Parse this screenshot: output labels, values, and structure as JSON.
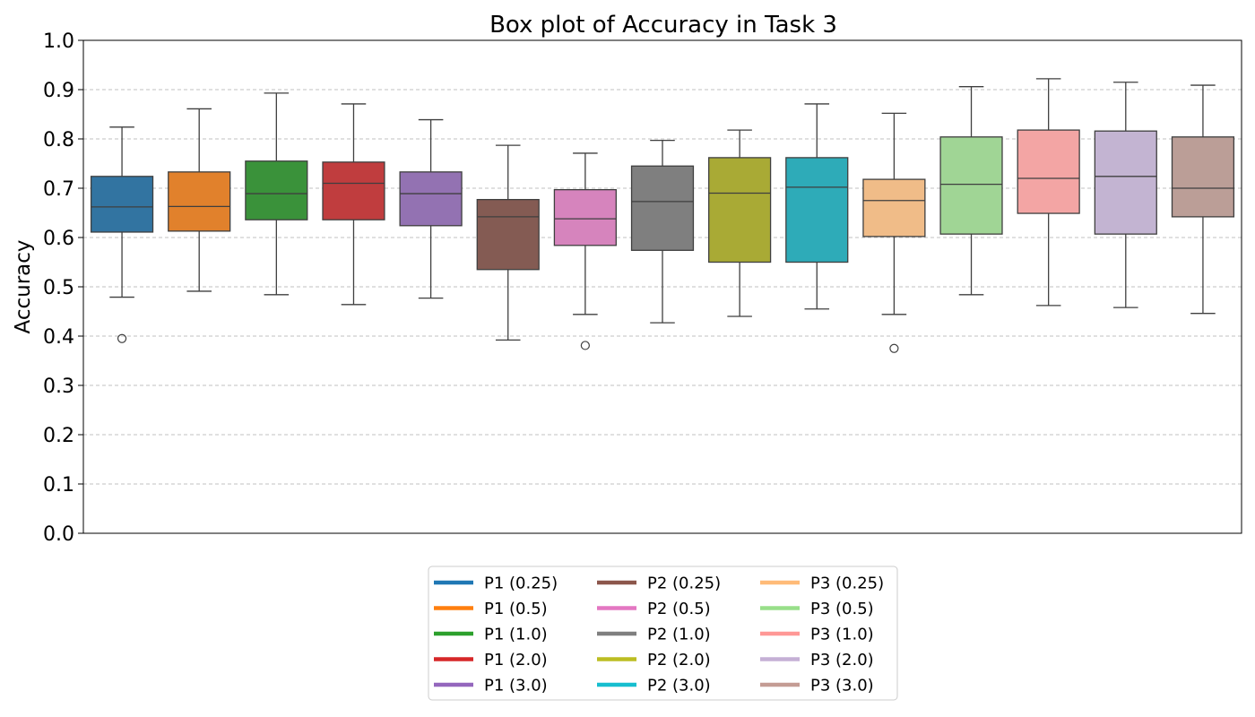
{
  "chart_data": {
    "type": "box",
    "title": "Box plot of Accuracy in Task 3",
    "xlabel": "",
    "ylabel": "Accuracy",
    "ylim": [
      0,
      1
    ],
    "yticks": [
      "0.0",
      "0.1",
      "0.2",
      "0.3",
      "0.4",
      "0.5",
      "0.6",
      "0.7",
      "0.8",
      "0.9",
      "1.0"
    ],
    "grid": "y-dashed",
    "legend_position": "bottom-center",
    "series": [
      {
        "name": "P1 (0.25)",
        "color": "#1f77b4",
        "box_color": "#3274a1",
        "whisker_low": 0.479,
        "q1": 0.611,
        "median": 0.662,
        "q3": 0.724,
        "whisker_high": 0.824,
        "outliers": [
          0.395
        ]
      },
      {
        "name": "P1 (0.5)",
        "color": "#ff7f0e",
        "box_color": "#e1812c",
        "whisker_low": 0.491,
        "q1": 0.613,
        "median": 0.663,
        "q3": 0.733,
        "whisker_high": 0.861,
        "outliers": []
      },
      {
        "name": "P1 (1.0)",
        "color": "#2ca02c",
        "box_color": "#3a923a",
        "whisker_low": 0.484,
        "q1": 0.636,
        "median": 0.689,
        "q3": 0.755,
        "whisker_high": 0.893,
        "outliers": []
      },
      {
        "name": "P1 (2.0)",
        "color": "#d62728",
        "box_color": "#c03d3e",
        "whisker_low": 0.464,
        "q1": 0.636,
        "median": 0.71,
        "q3": 0.753,
        "whisker_high": 0.871,
        "outliers": []
      },
      {
        "name": "P1 (3.0)",
        "color": "#9467bd",
        "box_color": "#9372b2",
        "whisker_low": 0.477,
        "q1": 0.624,
        "median": 0.689,
        "q3": 0.733,
        "whisker_high": 0.839,
        "outliers": []
      },
      {
        "name": "P2 (0.25)",
        "color": "#8c564b",
        "box_color": "#845b53",
        "whisker_low": 0.392,
        "q1": 0.535,
        "median": 0.642,
        "q3": 0.677,
        "whisker_high": 0.787,
        "outliers": []
      },
      {
        "name": "P2 (0.5)",
        "color": "#e377c2",
        "box_color": "#d684bd",
        "whisker_low": 0.444,
        "q1": 0.584,
        "median": 0.638,
        "q3": 0.697,
        "whisker_high": 0.771,
        "outliers": [
          0.381
        ]
      },
      {
        "name": "P2 (1.0)",
        "color": "#7f7f7f",
        "box_color": "#7f7f7f",
        "whisker_low": 0.427,
        "q1": 0.574,
        "median": 0.673,
        "q3": 0.745,
        "whisker_high": 0.797,
        "outliers": []
      },
      {
        "name": "P2 (2.0)",
        "color": "#bcbd22",
        "box_color": "#a9aa35",
        "whisker_low": 0.44,
        "q1": 0.55,
        "median": 0.69,
        "q3": 0.762,
        "whisker_high": 0.818,
        "outliers": []
      },
      {
        "name": "P2 (3.0)",
        "color": "#17becf",
        "box_color": "#2eabb8",
        "whisker_low": 0.455,
        "q1": 0.55,
        "median": 0.702,
        "q3": 0.762,
        "whisker_high": 0.871,
        "outliers": []
      },
      {
        "name": "P3 (0.25)",
        "color": "#ffbb78",
        "box_color": "#f0bc88",
        "whisker_low": 0.444,
        "q1": 0.602,
        "median": 0.675,
        "q3": 0.718,
        "whisker_high": 0.852,
        "outliers": [
          0.375
        ]
      },
      {
        "name": "P3 (0.5)",
        "color": "#98df8a",
        "box_color": "#a0d595",
        "whisker_low": 0.484,
        "q1": 0.607,
        "median": 0.708,
        "q3": 0.804,
        "whisker_high": 0.906,
        "outliers": []
      },
      {
        "name": "P3 (1.0)",
        "color": "#ff9896",
        "box_color": "#f3a5a4",
        "whisker_low": 0.462,
        "q1": 0.649,
        "median": 0.72,
        "q3": 0.818,
        "whisker_high": 0.922,
        "outliers": []
      },
      {
        "name": "P3 (2.0)",
        "color": "#c5b0d5",
        "box_color": "#c3b4d2",
        "whisker_low": 0.458,
        "q1": 0.607,
        "median": 0.724,
        "q3": 0.816,
        "whisker_high": 0.915,
        "outliers": []
      },
      {
        "name": "P3 (3.0)",
        "color": "#c49c94",
        "box_color": "#bb9e97",
        "whisker_low": 0.446,
        "q1": 0.642,
        "median": 0.7,
        "q3": 0.804,
        "whisker_high": 0.909,
        "outliers": []
      }
    ]
  }
}
